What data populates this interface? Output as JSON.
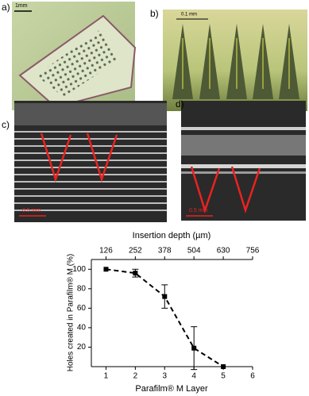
{
  "panels": [
    {
      "label": "a)",
      "scale_bar": "1mm"
    },
    {
      "label": "b)",
      "scale_bar": "0.1 mm"
    },
    {
      "label": "c)",
      "scale_bar": "0.5 mm"
    },
    {
      "label": "d)",
      "scale_bar": "0.5 mm"
    }
  ],
  "chart_data": {
    "type": "line",
    "xlabel": "Parafilm® M Layer",
    "ylabel": "Holes created in Parafilm® M (%)",
    "x2label": "Insertion depth (µm)",
    "x": [
      1,
      2,
      3,
      4,
      5
    ],
    "values": [
      100,
      96,
      72,
      19,
      0
    ],
    "errors": [
      0,
      4,
      12,
      22,
      0
    ],
    "color": "#000000",
    "line_style": "dashed",
    "marker": "square",
    "xlim": [
      0.5,
      6
    ],
    "xticks": [
      1,
      2,
      3,
      4,
      5,
      6
    ],
    "x2lim": [
      63,
      756
    ],
    "x2ticks": [
      126,
      252,
      378,
      504,
      630,
      756
    ],
    "ylim": [
      0,
      110
    ],
    "yticks": [
      20,
      40,
      60,
      80,
      100
    ]
  }
}
